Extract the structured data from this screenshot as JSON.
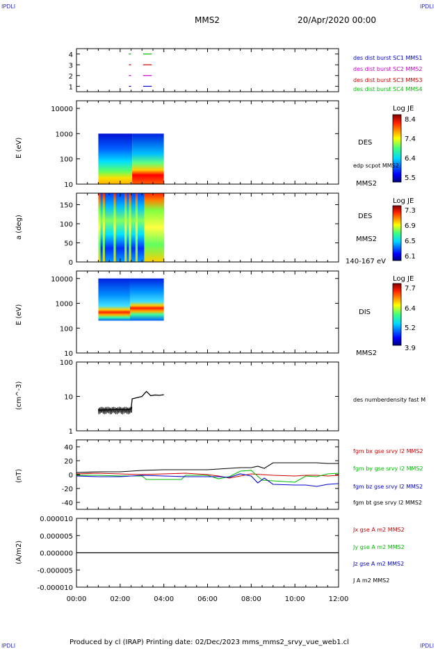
{
  "corners": {
    "tl": "IPDLI",
    "tr": "IPDLI",
    "bl": "IPDLI",
    "br": "IPDLI"
  },
  "header": {
    "spacecraft": "MMS2",
    "date": "20/Apr/2020 00:00"
  },
  "footer": {
    "text": "Produced by cl (IRAP)   Printing date: 02/Dec/2023   mms_mms2_srvy_vue_web1.cl"
  },
  "colors": {
    "blue": "#0000cc",
    "magenta": "#cc00cc",
    "red": "#cc0000",
    "green": "#00bb00",
    "black": "#000000"
  },
  "chart_data": [
    {
      "type": "line",
      "panel": "burst-availability",
      "yticks": [
        "4",
        "3",
        "2",
        "1"
      ],
      "ylim": [
        0.5,
        4.5
      ],
      "series": [
        {
          "name": "des dist burst SC1 MMS1",
          "color": "blue",
          "y": 1,
          "segments": [
            [
              2.4,
              2.5
            ],
            [
              3.05,
              3.45
            ]
          ]
        },
        {
          "name": "des dist burst SC2 MMS2",
          "color": "magenta",
          "y": 2,
          "segments": [
            [
              2.4,
              2.5
            ],
            [
              3.05,
              3.45
            ]
          ]
        },
        {
          "name": "des dist burst SC3 MMS3",
          "color": "red",
          "y": 3,
          "segments": [
            [
              2.4,
              2.5
            ],
            [
              3.05,
              3.45
            ]
          ]
        },
        {
          "name": "des dist burst SC4 MMS4",
          "color": "green",
          "y": 4,
          "segments": [
            [
              2.4,
              2.5
            ],
            [
              3.05,
              3.45
            ]
          ]
        }
      ]
    },
    {
      "type": "heatmap",
      "panel": "des-energy",
      "ylabel": "E (eV)",
      "yticks": [
        "10000",
        "1000",
        "100",
        "10"
      ],
      "scale": "log",
      "ylim": [
        10,
        20000
      ],
      "xrange_hours": [
        1.0,
        4.0
      ],
      "yrange": [
        10,
        1000
      ],
      "side_label": "DES",
      "extra_label": "edp scpot MMS2",
      "below_label": "MMS2",
      "colorbar": {
        "title": "Log JE",
        "labels": [
          "8.4",
          "7.4",
          "6.4",
          "5.5"
        ],
        "range": [
          5.5,
          8.4
        ]
      }
    },
    {
      "type": "heatmap",
      "panel": "des-pitch",
      "ylabel": "a (deg)",
      "yticks": [
        "150",
        "100",
        "50",
        "0"
      ],
      "ylim": [
        0,
        180
      ],
      "xrange_hours": [
        1.0,
        4.0
      ],
      "side_label": "DES",
      "extra_label": "MMS2",
      "below_label": "140-167 eV",
      "colorbar": {
        "title": "Log JE",
        "labels": [
          "7.3",
          "6.9",
          "6.5",
          "6.1"
        ],
        "range": [
          6.1,
          7.3
        ]
      }
    },
    {
      "type": "heatmap",
      "panel": "dis-energy",
      "ylabel": "E (eV)",
      "yticks": [
        "10000",
        "1000",
        "100",
        "10"
      ],
      "scale": "log",
      "ylim": [
        10,
        20000
      ],
      "xrange_hours": [
        1.0,
        4.0
      ],
      "yrange": [
        200,
        10000
      ],
      "side_label": "DIS",
      "below_label": "MMS2",
      "colorbar": {
        "title": "Log JE",
        "labels": [
          "7.7",
          "6.4",
          "5.2",
          "3.9"
        ],
        "range": [
          3.9,
          7.7
        ]
      }
    },
    {
      "type": "line",
      "panel": "density",
      "ylabel": "(cm^-3)",
      "yticks": [
        "100",
        "10",
        "1"
      ],
      "scale": "log",
      "ylim": [
        1,
        100
      ],
      "series": [
        {
          "name": "des numberdensity fast M",
          "color": "black",
          "x": [
            1.0,
            1.5,
            2.0,
            2.3,
            2.5,
            2.55,
            3.0,
            3.2,
            3.4,
            3.6,
            3.8,
            4.0
          ],
          "y": [
            4.0,
            4.1,
            4.2,
            4.1,
            4.3,
            8.5,
            10.0,
            14.0,
            10.5,
            11.0,
            10.8,
            11.2
          ]
        }
      ]
    },
    {
      "type": "line",
      "panel": "fgm",
      "ylabel": "(nT)",
      "yticks": [
        "40",
        "20",
        "0",
        "-20",
        "-40"
      ],
      "ylim": [
        -50,
        50
      ],
      "series": [
        {
          "name": "fgm bx gse srvy l2 MMS2",
          "color": "red",
          "x": [
            0,
            1,
            2,
            3,
            4,
            5,
            6,
            6.5,
            7,
            7.5,
            8,
            8.5,
            9,
            10,
            10.5,
            11,
            11.5,
            12
          ],
          "y": [
            1,
            2,
            1,
            0,
            1,
            2,
            0,
            -2,
            -5,
            -2,
            1,
            0,
            -1,
            -2,
            -1,
            -1,
            -2,
            -1
          ]
        },
        {
          "name": "fgm by gse srvy l2 MMS2",
          "color": "green",
          "x": [
            0,
            1,
            2,
            3,
            3.2,
            4,
            4.8,
            5,
            6,
            6.5,
            7,
            7.5,
            8,
            8.5,
            9,
            10,
            10.5,
            11,
            11.5,
            12
          ],
          "y": [
            -1,
            -1,
            -2,
            -2,
            -7,
            -7,
            -7,
            -1,
            -1,
            -6,
            -3,
            5,
            6,
            -8,
            -9,
            -11,
            -2,
            -3,
            1,
            2
          ]
        },
        {
          "name": "fgm bz gse srvy l2 MMS2",
          "color": "blue",
          "x": [
            0,
            1,
            2,
            3,
            4,
            5,
            6,
            6.5,
            7,
            7.5,
            8,
            8.3,
            8.6,
            9,
            10,
            10.5,
            11,
            11.5,
            12
          ],
          "y": [
            -2,
            -3,
            -3,
            -1,
            -2,
            -3,
            -3,
            -3,
            -4,
            1,
            -2,
            -12,
            -5,
            -14,
            -15,
            -15,
            -17,
            -14,
            -13
          ]
        },
        {
          "name": "fgm bt gse srvy l2 MMS2",
          "color": "black",
          "x": [
            0,
            1,
            2,
            3,
            4,
            5,
            6,
            6.5,
            7,
            7.5,
            8,
            8.3,
            8.6,
            9,
            10,
            10.5,
            11,
            11.5,
            12
          ],
          "y": [
            3,
            4,
            4,
            6,
            7,
            7,
            7,
            8,
            9,
            10,
            10,
            12,
            9,
            17,
            17,
            17,
            17,
            16,
            16
          ]
        }
      ]
    },
    {
      "type": "line",
      "panel": "current-density",
      "ylabel": "(A/m2)",
      "yticks": [
        "0.000010",
        "0.000005",
        "0.000000",
        "-0.000005",
        "-0.000010"
      ],
      "ylim": [
        -1e-05,
        1e-05
      ],
      "series": [
        {
          "name": "Jx gse A m2 MMS2",
          "color": "red"
        },
        {
          "name": "Jy gse A m2 MMS2",
          "color": "green"
        },
        {
          "name": "Jz gse A m2 MMS2",
          "color": "blue"
        },
        {
          "name": "J A m2 MMS2",
          "color": "black",
          "x": [
            0,
            12
          ],
          "y": [
            0,
            0
          ]
        }
      ]
    }
  ],
  "xaxis": {
    "ticks": [
      "00:00",
      "02:00",
      "04:00",
      "06:00",
      "08:00",
      "10:00",
      "12:00"
    ],
    "range_hours": [
      0,
      12
    ]
  }
}
